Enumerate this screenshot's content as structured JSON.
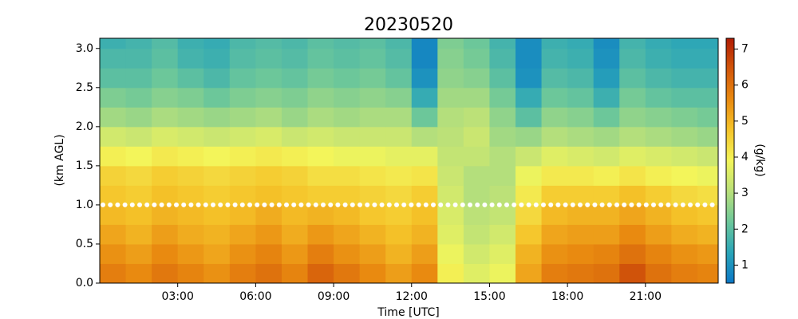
{
  "chart_data": {
    "type": "heatmap",
    "title": "20230520",
    "xlabel": "Time [UTC]",
    "ylabel": "(km AGL)",
    "colorbar_label": "(g/kg)",
    "xlim": [
      0,
      23.8
    ],
    "ylim": [
      0,
      3.13
    ],
    "clim": [
      0.5,
      7.3
    ],
    "xticks": [
      {
        "value": 3,
        "label": "03:00"
      },
      {
        "value": 6,
        "label": "06:00"
      },
      {
        "value": 9,
        "label": "09:00"
      },
      {
        "value": 12,
        "label": "12:00"
      },
      {
        "value": 15,
        "label": "15:00"
      },
      {
        "value": 18,
        "label": "18:00"
      },
      {
        "value": 21,
        "label": "21:00"
      }
    ],
    "yticks": [
      {
        "value": 0,
        "label": "0.0"
      },
      0.5,
      {
        "value": 1,
        "label": "1.0"
      },
      1.5,
      {
        "value": 2,
        "label": "2.0"
      },
      2.5,
      {
        "value": 3,
        "label": "3.0"
      }
    ],
    "cticks": [
      1,
      2,
      3,
      4,
      5,
      6,
      7
    ],
    "colormap": [
      "#0b77c6",
      "#2aa5b8",
      "#6cc79a",
      "#b9e07a",
      "#f3f55a",
      "#f5c42a",
      "#e98a10",
      "#d2560a",
      "#b01c04"
    ],
    "hline": {
      "y": 1,
      "color": "#ffffff"
    },
    "xbins": [
      0,
      1,
      2,
      3,
      4,
      5,
      6,
      7,
      8,
      9,
      10,
      11,
      12,
      13,
      14,
      15,
      16,
      17,
      18,
      19,
      20,
      21,
      22,
      23,
      23.8
    ],
    "ybins": [
      0,
      0.25,
      0.5,
      0.75,
      1,
      1.25,
      1.5,
      1.75,
      2,
      2.25,
      2.5,
      2.75,
      3,
      3.13
    ],
    "z": [
      [
        5.8,
        5.6,
        5.9,
        5.7,
        5.5,
        5.8,
        6.0,
        5.7,
        6.2,
        5.9,
        5.6,
        5.3,
        5.6,
        4.0,
        3.6,
        3.8,
        5.2,
        5.8,
        5.9,
        6.0,
        6.5,
        6.0,
        5.8,
        5.7
      ],
      [
        5.5,
        5.3,
        5.6,
        5.4,
        5.2,
        5.5,
        5.7,
        5.4,
        5.8,
        5.5,
        5.3,
        5.0,
        5.3,
        3.8,
        3.4,
        3.6,
        5.0,
        5.5,
        5.6,
        5.7,
        6.0,
        5.7,
        5.5,
        5.4
      ],
      [
        5.2,
        5.0,
        5.3,
        5.1,
        5.0,
        5.2,
        5.4,
        5.1,
        5.4,
        5.2,
        5.0,
        4.8,
        5.0,
        3.6,
        3.2,
        3.4,
        4.7,
        5.2,
        5.3,
        5.3,
        5.6,
        5.3,
        5.1,
        5.0
      ],
      [
        4.9,
        4.8,
        5.0,
        4.9,
        4.8,
        4.9,
        5.1,
        4.9,
        5.0,
        4.9,
        4.7,
        4.6,
        4.8,
        3.5,
        3.1,
        3.2,
        4.4,
        4.9,
        5.0,
        5.0,
        5.2,
        5.0,
        4.8,
        4.7
      ],
      [
        4.7,
        4.6,
        4.8,
        4.7,
        4.6,
        4.7,
        4.8,
        4.7,
        4.6,
        4.6,
        4.5,
        4.4,
        4.6,
        3.4,
        3.0,
        3.1,
        4.1,
        4.6,
        4.6,
        4.6,
        4.8,
        4.6,
        4.4,
        4.3
      ],
      [
        4.5,
        4.4,
        4.6,
        4.5,
        4.4,
        4.5,
        4.6,
        4.5,
        4.3,
        4.3,
        4.2,
        4.1,
        4.2,
        3.3,
        3.0,
        3.0,
        3.8,
        4.1,
        4.1,
        4.0,
        4.2,
        4.0,
        3.9,
        3.8
      ],
      [
        4.0,
        3.9,
        4.1,
        4.0,
        3.9,
        4.0,
        4.1,
        4.0,
        3.9,
        3.8,
        3.8,
        3.7,
        3.7,
        3.2,
        3.2,
        3.0,
        3.3,
        3.6,
        3.5,
        3.4,
        3.6,
        3.5,
        3.4,
        3.3
      ],
      [
        3.4,
        3.3,
        3.5,
        3.4,
        3.3,
        3.4,
        3.5,
        3.3,
        3.4,
        3.3,
        3.3,
        3.3,
        3.0,
        3.1,
        3.3,
        2.8,
        2.7,
        3.0,
        2.9,
        2.8,
        3.0,
        2.9,
        2.8,
        2.7
      ],
      [
        2.8,
        2.7,
        2.9,
        2.8,
        2.7,
        2.8,
        2.9,
        2.7,
        2.9,
        2.8,
        2.9,
        2.9,
        2.2,
        3.0,
        3.1,
        2.6,
        2.0,
        2.6,
        2.5,
        2.2,
        2.6,
        2.5,
        2.4,
        2.3
      ],
      [
        2.4,
        2.3,
        2.5,
        2.4,
        2.2,
        2.4,
        2.5,
        2.4,
        2.6,
        2.5,
        2.6,
        2.5,
        1.5,
        2.8,
        2.8,
        2.3,
        1.5,
        2.2,
        2.1,
        1.6,
        2.3,
        2.1,
        2.0,
        2.0
      ],
      [
        2.0,
        2.0,
        2.2,
        2.0,
        1.8,
        2.1,
        2.2,
        2.1,
        2.3,
        2.2,
        2.3,
        2.1,
        1.0,
        2.6,
        2.5,
        2.0,
        1.0,
        1.9,
        1.8,
        1.2,
        2.0,
        1.8,
        1.7,
        1.7
      ],
      [
        1.8,
        1.8,
        2.0,
        1.7,
        1.6,
        1.9,
        2.0,
        1.9,
        2.1,
        2.0,
        2.1,
        1.9,
        0.8,
        2.5,
        2.3,
        1.8,
        0.9,
        1.7,
        1.6,
        1.0,
        1.8,
        1.6,
        1.5,
        1.5
      ],
      [
        1.6,
        1.7,
        1.9,
        1.6,
        1.5,
        1.8,
        1.9,
        1.8,
        2.0,
        1.9,
        2.0,
        1.8,
        0.8,
        2.4,
        2.2,
        1.7,
        0.9,
        1.6,
        1.5,
        0.9,
        1.7,
        1.5,
        1.4,
        1.4
      ]
    ]
  }
}
